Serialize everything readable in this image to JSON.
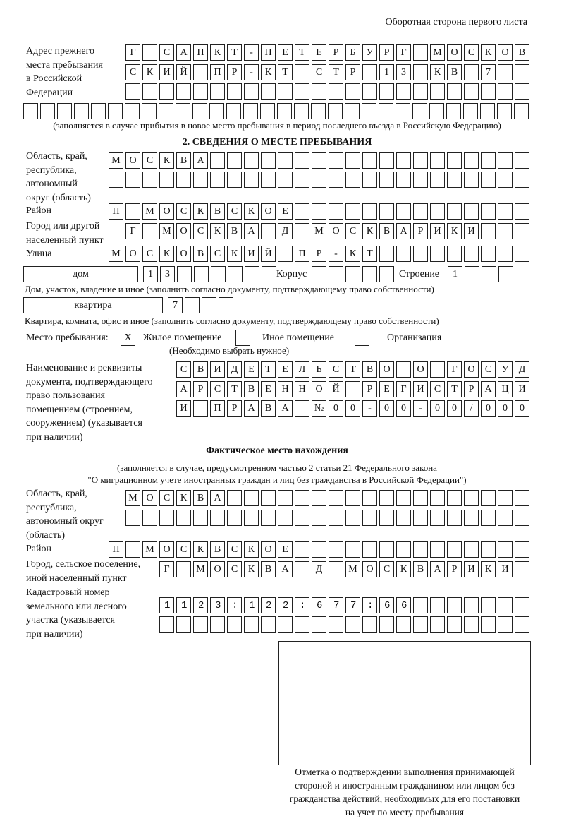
{
  "header": "Оборотная сторона первого листа",
  "previous_address": {
    "label": "Адрес прежнего\nместа пребывания\nв Российской\nФедерации",
    "rows": [
      "Г САНКТ-ПЕТЕРБУРГ МОСКОВ",
      "СКИЙ ПР-КТ СТР 13 КВ 7  ",
      "                        ",
      "                              "
    ],
    "note": "(заполняется в случае прибытия в новое место пребывания в период последнего въезда в Российскую Федерацию)"
  },
  "section2": {
    "title": "2. СВЕДЕНИЯ О МЕСТЕ ПРЕБЫВАНИЯ",
    "region_label": "Область, край,\nреспублика,\nавтономный\nокруг (область)",
    "region_rows": [
      "МОСКВА                   ",
      "                         "
    ],
    "district_label": "Район",
    "district_row": "П МОСКВСКОЕ              ",
    "city_label": "Город или другой\nнаселенный пункт",
    "city_row": "Г МОСКВА Д МОСКВАРИКИ   ",
    "street_label": "Улица",
    "street_row": "МОСКОВСКИЙ ПР-КТ         ",
    "house_type": "дом",
    "house_row": "13      ",
    "korpus_label": "Корпус",
    "korpus_row": "     ",
    "building_label": "Строение",
    "building_row": "1   ",
    "house_note": "Дом, участок, владение и иное (заполнить согласно документу, подтверждающему право собственности)",
    "flat_type": "квартира",
    "flat_row": "7   ",
    "flat_note": "Квартира, комната, офис и иное (заполнить согласно документу, подтверждающему право собственности)",
    "place_label": "Место пребывания:",
    "place_options": [
      {
        "label": "Жилое помещение",
        "checked": true,
        "mark": "X"
      },
      {
        "label": "Иное помещение",
        "checked": false,
        "mark": ""
      },
      {
        "label": "Организация",
        "checked": false,
        "mark": ""
      }
    ],
    "place_note": "(Необходимо выбрать нужное)",
    "doc_label": "Наименование и реквизиты\nдокумента, подтверждающего\nправо пользования\nпомещением (строением,\nсооружением) (указывается\nпри наличии)",
    "doc_rows": [
      "СВИДЕТЕЛЬСТВО О ГОСУД",
      "АРСТВЕННОЙ РЕГИСТРАЦИ",
      "И ПРАВА №00-00-00/000"
    ]
  },
  "actual": {
    "title": "Фактическое место нахождения",
    "subtitle_1": "(заполняется в случае, предусмотренном частью 2 статьи 21 Федерального закона",
    "subtitle_2": "\"О миграционном учете иностранных граждан и лиц без гражданства в Российской Федерации\")",
    "region_label": "Область, край,\nреспублика,\nавтономный округ\n(область)",
    "region_rows": [
      "МОСКВА                  ",
      "                        "
    ],
    "district_label": "Район",
    "district_row": "П МОСКВСКОЕ              ",
    "city_label": "Город, сельское поселение,\nиной населенный пункт",
    "city_row": "Г МОСКВА Д МОСКВАРИКИ ",
    "cadastral_label": "Кадастровый номер\nземельного или лесного\nучастка (указывается\nпри наличии)",
    "cadastral_rows": [
      "1123:122:677:66       ",
      "                      "
    ]
  },
  "stamp": {
    "caption": "Отметка о подтверждении выполнения принимающей\nстороной и иностранным гражданином или лицом без\nгражданства действий, необходимых для его постановки\nна учет по месту пребывания"
  }
}
